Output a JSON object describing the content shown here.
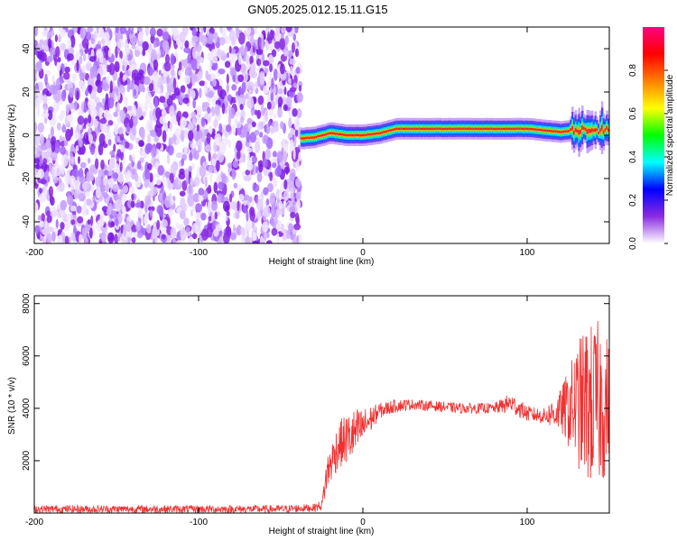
{
  "title": "GN05.2025.012.15.11.G15",
  "chart_data": [
    {
      "type": "heatmap",
      "xlabel": "Height of straight line (km)",
      "ylabel": "Frequency (Hz)",
      "xlim": [
        -200,
        150
      ],
      "ylim": [
        -50,
        50
      ],
      "x_ticks": [
        -200,
        -100,
        0,
        100
      ],
      "y_ticks": [
        -40,
        -20,
        0,
        20,
        40
      ],
      "colorbar": {
        "label": "Normalized spectral amplitude",
        "range": [
          0,
          1
        ],
        "ticks": [
          "0.0",
          "0.2",
          "0.4",
          "0.6",
          "0.8"
        ],
        "colors": [
          "#ffffff",
          "#8a2be2",
          "#0000ff",
          "#00ffff",
          "#00ff00",
          "#ffff00",
          "#ff8000",
          "#ff0000",
          "#ff0080"
        ]
      },
      "noise_region": {
        "x": [
          -200,
          -38
        ],
        "y": [
          -50,
          50
        ],
        "amplitude": 0.1
      },
      "signal_ridge": [
        {
          "x": -38,
          "y": -1.5
        },
        {
          "x": -30,
          "y": -1
        },
        {
          "x": -20,
          "y": 1
        },
        {
          "x": -10,
          "y": 0
        },
        {
          "x": 0,
          "y": 0
        },
        {
          "x": 10,
          "y": 1
        },
        {
          "x": 20,
          "y": 3
        },
        {
          "x": 40,
          "y": 3
        },
        {
          "x": 60,
          "y": 3
        },
        {
          "x": 85,
          "y": 3
        },
        {
          "x": 100,
          "y": 3
        },
        {
          "x": 120,
          "y": 1.5
        },
        {
          "x": 135,
          "y": 3
        },
        {
          "x": 150,
          "y": 2
        }
      ]
    },
    {
      "type": "line",
      "xlabel": "Height of straight line (km)",
      "ylabel": "SNR (10 * v/v)",
      "xlim": [
        -200,
        150
      ],
      "ylim": [
        0,
        8300
      ],
      "x_ticks": [
        -200,
        -100,
        0,
        100
      ],
      "y_ticks": [
        2000,
        4000,
        6000,
        8000
      ],
      "color": "#f03030",
      "series": [
        {
          "x": [
            -200,
            -150,
            -100,
            -50,
            -30,
            -25,
            -22,
            -15,
            -10,
            -5,
            0,
            10,
            20,
            30,
            40,
            60,
            80,
            90,
            100,
            110,
            120,
            125,
            130,
            135,
            140,
            145,
            150
          ],
          "values": [
            150,
            150,
            150,
            150,
            200,
            300,
            1500,
            2600,
            2800,
            3000,
            3300,
            3900,
            4100,
            4150,
            4100,
            4000,
            4000,
            4200,
            3800,
            3700,
            3900,
            4000,
            4100,
            4200,
            4100,
            4200,
            4100
          ],
          "spread": [
            150,
            150,
            150,
            150,
            150,
            200,
            700,
            900,
            1000,
            1000,
            700,
            300,
            250,
            200,
            200,
            200,
            200,
            400,
            300,
            300,
            800,
            1500,
            2300,
            3000,
            3200,
            3200,
            2500
          ]
        }
      ]
    }
  ]
}
